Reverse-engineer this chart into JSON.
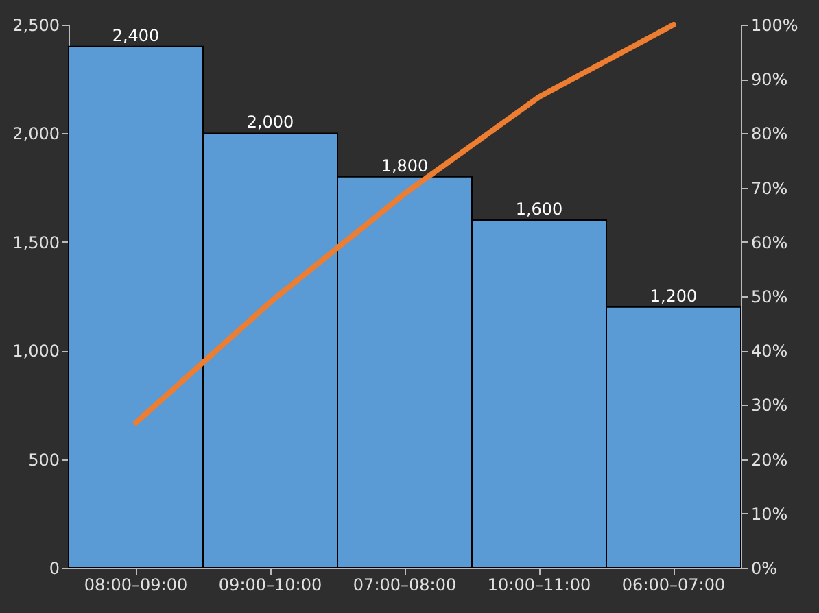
{
  "chart_data": {
    "type": "bar",
    "categories": [
      "08:00–09:00",
      "09:00–10:00",
      "07:00–08:00",
      "10:00–11:00",
      "06:00–07:00"
    ],
    "series": [
      {
        "color": "#5b9bd5",
        "values": [
          2400,
          2000,
          1800,
          1600,
          1200
        ],
        "value_labels": [
          "2,400",
          "2,000",
          "1,800",
          "1,600",
          "1,200"
        ]
      },
      {
        "type": "line",
        "axis": "y2",
        "color": "#ed7d31",
        "values": [
          26.7,
          48.9,
          68.9,
          86.7,
          100
        ]
      }
    ],
    "ylim": [
      0,
      2500
    ],
    "yticks": [
      0,
      {
        "value": 500,
        "label": "500"
      },
      {
        "value": 1000,
        "label": "1,000"
      },
      {
        "value": 1500,
        "label": "1,500"
      },
      {
        "value": 2000,
        "label": "2,000"
      },
      {
        "value": 2500,
        "label": "2,500"
      }
    ],
    "y2lim": [
      0,
      100
    ],
    "y2ticks": [
      {
        "value": 0,
        "label": "0%"
      },
      {
        "value": 10,
        "label": "10%"
      },
      {
        "value": 20,
        "label": "20%"
      },
      {
        "value": 30,
        "label": "30%"
      },
      {
        "value": 40,
        "label": "40%"
      },
      {
        "value": 50,
        "label": "50%"
      },
      {
        "value": 60,
        "label": "60%"
      },
      {
        "value": 70,
        "label": "70%"
      },
      {
        "value": 80,
        "label": "80%"
      },
      {
        "value": 90,
        "label": "90%"
      },
      {
        "value": 100,
        "label": "100%"
      }
    ],
    "grid": false
  }
}
